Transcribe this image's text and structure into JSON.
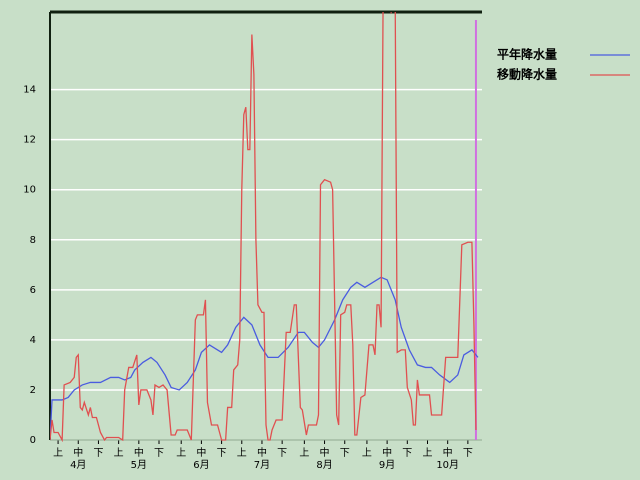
{
  "chart_data": {
    "type": "line",
    "xlim": [
      0,
      214
    ],
    "ylim": [
      0,
      17.1
    ],
    "yticks": [
      0,
      2,
      4,
      6,
      8,
      10,
      12,
      14
    ],
    "xticks": [
      {
        "value": 4,
        "label": "上"
      },
      {
        "value": 14,
        "label": "中"
      },
      {
        "value": 24,
        "label": "下"
      },
      {
        "value": 34,
        "label": "上"
      },
      {
        "value": 44,
        "label": "中"
      },
      {
        "value": 54,
        "label": "下"
      },
      {
        "value": 65,
        "label": "上"
      },
      {
        "value": 75,
        "label": "中"
      },
      {
        "value": 85,
        "label": "下"
      },
      {
        "value": 95,
        "label": "上"
      },
      {
        "value": 105,
        "label": "中"
      },
      {
        "value": 115,
        "label": "下"
      },
      {
        "value": 126,
        "label": "上"
      },
      {
        "value": 136,
        "label": "中"
      },
      {
        "value": 146,
        "label": "下"
      },
      {
        "value": 157,
        "label": "上"
      },
      {
        "value": 167,
        "label": "中"
      },
      {
        "value": 177,
        "label": "下"
      },
      {
        "value": 187,
        "label": "上"
      },
      {
        "value": 197,
        "label": "中"
      },
      {
        "value": 207,
        "label": "下"
      }
    ],
    "month_labels": [
      {
        "value": 14,
        "label": "4月"
      },
      {
        "value": 44,
        "label": "5月"
      },
      {
        "value": 75,
        "label": "6月"
      },
      {
        "value": 105,
        "label": "7月"
      },
      {
        "value": 136,
        "label": "8月"
      },
      {
        "value": 167,
        "label": "9月"
      },
      {
        "value": 197,
        "label": "10月"
      }
    ],
    "grid": true,
    "marker_x": 211,
    "marker_color": "#d070e0",
    "series": [
      {
        "name": "平年降水量",
        "color": "#4a5ce0",
        "x": [
          0,
          1,
          6,
          9,
          12,
          16,
          20,
          25,
          30,
          34,
          37,
          40,
          42,
          46,
          50,
          53,
          57,
          60,
          64,
          68,
          72,
          75,
          79,
          83,
          85,
          88,
          92,
          96,
          100,
          104,
          108,
          113,
          118,
          123,
          126,
          130,
          133,
          136,
          141,
          145,
          149,
          152,
          156,
          160,
          164,
          167,
          171,
          174,
          178,
          182,
          186,
          189,
          193,
          198,
          202,
          205,
          209,
          212
        ],
        "values": [
          0,
          1.6,
          1.6,
          1.7,
          2.0,
          2.2,
          2.3,
          2.3,
          2.5,
          2.5,
          2.4,
          2.5,
          2.8,
          3.1,
          3.3,
          3.1,
          2.6,
          2.1,
          2.0,
          2.3,
          2.8,
          3.5,
          3.8,
          3.6,
          3.5,
          3.8,
          4.5,
          4.9,
          4.6,
          3.8,
          3.3,
          3.3,
          3.7,
          4.3,
          4.3,
          3.9,
          3.7,
          4.0,
          4.8,
          5.6,
          6.1,
          6.3,
          6.1,
          6.3,
          6.5,
          6.4,
          5.6,
          4.5,
          3.6,
          3.0,
          2.9,
          2.9,
          2.6,
          2.3,
          2.6,
          3.4,
          3.6,
          3.3
        ]
      },
      {
        "name": "移動降水量",
        "color": "#e05050",
        "x": [
          0,
          1,
          2,
          4,
          6,
          7,
          10,
          12,
          13,
          14,
          15,
          16,
          17,
          19,
          20,
          21,
          23,
          25,
          27,
          28,
          34,
          36,
          37,
          39,
          41,
          43,
          44,
          45,
          48,
          50,
          51,
          52,
          54,
          56,
          58,
          60,
          62,
          63,
          68,
          70,
          72,
          73,
          76,
          77,
          78,
          80,
          83,
          85,
          87,
          88,
          90,
          91,
          93,
          94,
          95,
          96,
          97,
          98,
          99,
          100,
          101,
          102,
          103,
          105,
          106,
          107,
          108,
          109,
          110,
          112,
          115,
          117,
          119,
          121,
          122,
          124,
          125,
          127,
          128,
          132,
          133,
          134,
          136,
          139,
          140,
          142,
          143,
          144,
          146,
          147,
          149,
          150,
          151,
          152,
          154,
          156,
          158,
          160,
          161,
          162,
          163,
          164,
          165,
          168,
          169,
          171,
          172,
          174,
          176,
          177,
          179,
          180,
          181,
          182,
          183,
          188,
          189,
          194,
          196,
          202,
          204,
          207,
          209,
          210,
          211
        ],
        "values": [
          0,
          0.8,
          0.3,
          0.3,
          0,
          2.2,
          2.3,
          2.5,
          3.3,
          3.4,
          1.3,
          1.2,
          1.5,
          1.0,
          1.3,
          0.9,
          0.9,
          0.3,
          0,
          0.1,
          0.1,
          0,
          2.0,
          2.9,
          2.9,
          3.4,
          1.4,
          2.0,
          2.0,
          1.6,
          1.0,
          2.2,
          2.1,
          2.2,
          2.0,
          0.2,
          0.2,
          0.4,
          0.4,
          0,
          4.8,
          5.0,
          5.0,
          5.6,
          1.5,
          0.6,
          0.6,
          0,
          0,
          1.3,
          1.3,
          2.8,
          3.0,
          4.0,
          10.0,
          13.0,
          13.3,
          11.6,
          11.6,
          16.2,
          14.6,
          8.0,
          5.4,
          5.1,
          5.1,
          0.6,
          0,
          0,
          0.4,
          0.8,
          0.8,
          4.3,
          4.3,
          5.4,
          5.4,
          1.3,
          1.2,
          0.2,
          0.6,
          0.6,
          1.0,
          10.2,
          10.4,
          10.3,
          10.0,
          1.0,
          0.6,
          5.0,
          5.1,
          5.4,
          5.4,
          3.8,
          0.2,
          0.2,
          1.7,
          1.8,
          3.8,
          3.8,
          3.4,
          5.4,
          5.4,
          4.5,
          17.5,
          17.5,
          17.1,
          17.5,
          3.5,
          3.6,
          3.6,
          2.1,
          1.6,
          0.6,
          0.6,
          2.4,
          1.8,
          1.8,
          1.0,
          1.0,
          3.3,
          3.3,
          7.8,
          7.9,
          7.9,
          4.6,
          0.4
        ]
      }
    ]
  }
}
